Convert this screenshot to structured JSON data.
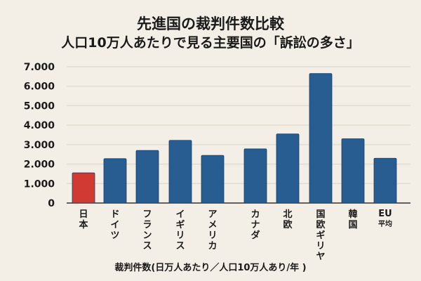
{
  "header": {
    "title_line1": "先進国の裁判件数比較",
    "title_line2": "人口10万人あたりで見る主要国の「訴訟の多さ」"
  },
  "chart_data": {
    "type": "bar",
    "title": "先進国の裁判件数比較 人口10万人あたりで見る主要国の「訴訟の多さ」",
    "xlabel": "裁判件数(日万人あたり／人口10万人あり/年 )",
    "ylabel": "",
    "ylim": [
      0,
      7000
    ],
    "yticks": [
      0,
      1000,
      2000,
      3000,
      4000,
      5000,
      6000,
      7000
    ],
    "ytick_labels": [
      "0",
      "1.000",
      "2.000",
      "3.000",
      "4.000",
      "5.000",
      "6.000",
      "7.000"
    ],
    "grid": true,
    "categories": [
      "日本",
      "ドイツ",
      "フランス",
      "イギリス",
      "アメリカ",
      "カナダ",
      "北欧",
      "国欧ギリヤ",
      "韓国",
      "EU平均"
    ],
    "category_lines": [
      [
        "日本"
      ],
      [
        "ドイツ"
      ],
      [
        "フランス"
      ],
      [
        "イギリス"
      ],
      [
        "アメリカ"
      ],
      [
        "カナダ"
      ],
      [
        "北欧"
      ],
      [
        "国欧ギリヤ"
      ],
      [
        "韓国"
      ],
      [
        "EU",
        "平均"
      ]
    ],
    "values": [
      1550,
      2280,
      2700,
      3220,
      2450,
      2780,
      3550,
      6650,
      3300,
      2300
    ],
    "colors": [
      "#d13a32",
      "#275d91",
      "#275d91",
      "#275d91",
      "#275d91",
      "#275d91",
      "#275d91",
      "#275d91",
      "#275d91",
      "#275d91"
    ]
  }
}
